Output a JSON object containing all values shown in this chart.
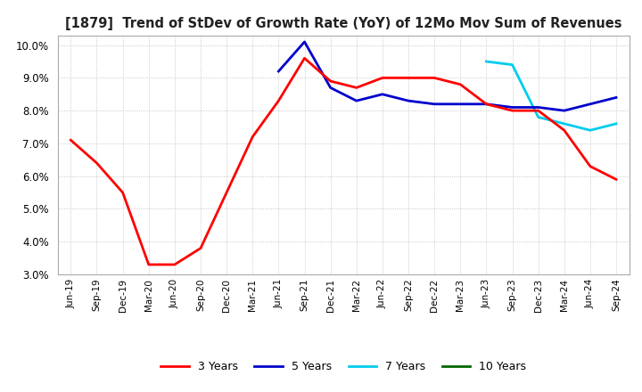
{
  "title": "[1879]  Trend of StDev of Growth Rate (YoY) of 12Mo Mov Sum of Revenues",
  "ylim": [
    0.03,
    0.103
  ],
  "yticks": [
    0.03,
    0.04,
    0.05,
    0.06,
    0.07,
    0.08,
    0.09,
    0.1
  ],
  "bg_color": "#ffffff",
  "grid_color": "#bbbbbb",
  "line_colors": {
    "3y": "#ff0000",
    "5y": "#0000cc",
    "7y": "#00ccee",
    "10y": "#006600"
  },
  "legend_labels": [
    "3 Years",
    "5 Years",
    "7 Years",
    "10 Years"
  ],
  "x_labels": [
    "Jun-19",
    "Sep-19",
    "Dec-19",
    "Mar-20",
    "Jun-20",
    "Sep-20",
    "Dec-20",
    "Mar-21",
    "Jun-21",
    "Sep-21",
    "Dec-21",
    "Mar-22",
    "Jun-22",
    "Sep-22",
    "Dec-22",
    "Mar-23",
    "Jun-23",
    "Sep-23",
    "Dec-23",
    "Mar-24",
    "Jun-24",
    "Sep-24"
  ],
  "data_3y": [
    0.071,
    0.064,
    0.055,
    0.033,
    0.033,
    0.038,
    0.055,
    0.072,
    0.083,
    0.096,
    0.089,
    0.087,
    0.09,
    0.09,
    0.09,
    0.088,
    0.082,
    0.08,
    0.08,
    0.074,
    0.063,
    0.059
  ],
  "data_5y": [
    null,
    null,
    null,
    null,
    null,
    null,
    null,
    null,
    0.092,
    0.101,
    0.087,
    0.083,
    0.085,
    0.083,
    0.082,
    0.082,
    0.082,
    0.081,
    0.081,
    0.08,
    0.082,
    0.084
  ],
  "data_7y": [
    null,
    null,
    null,
    null,
    null,
    null,
    null,
    null,
    null,
    null,
    null,
    null,
    null,
    null,
    null,
    null,
    0.095,
    0.094,
    0.078,
    0.076,
    0.074,
    0.076
  ],
  "data_10y": [
    null,
    null,
    null,
    null,
    null,
    null,
    null,
    null,
    null,
    null,
    null,
    null,
    null,
    null,
    null,
    null,
    null,
    null,
    null,
    null,
    null,
    null
  ]
}
